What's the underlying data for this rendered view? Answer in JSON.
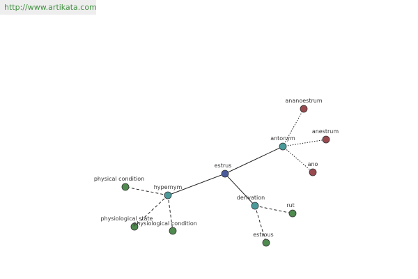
{
  "header": {
    "url": "http://www.artikata.com"
  },
  "nodes": [
    {
      "label": "estrus"
    },
    {
      "label": "antonym"
    },
    {
      "label": "ananoestrum"
    },
    {
      "label": "anestrum"
    },
    {
      "label": "ano"
    },
    {
      "label": "hypernym"
    },
    {
      "label": "physical condition"
    },
    {
      "label": "physiological state"
    },
    {
      "label": "physiological condition"
    },
    {
      "label": "derivation"
    },
    {
      "label": "rut"
    },
    {
      "label": "estrous"
    }
  ]
}
